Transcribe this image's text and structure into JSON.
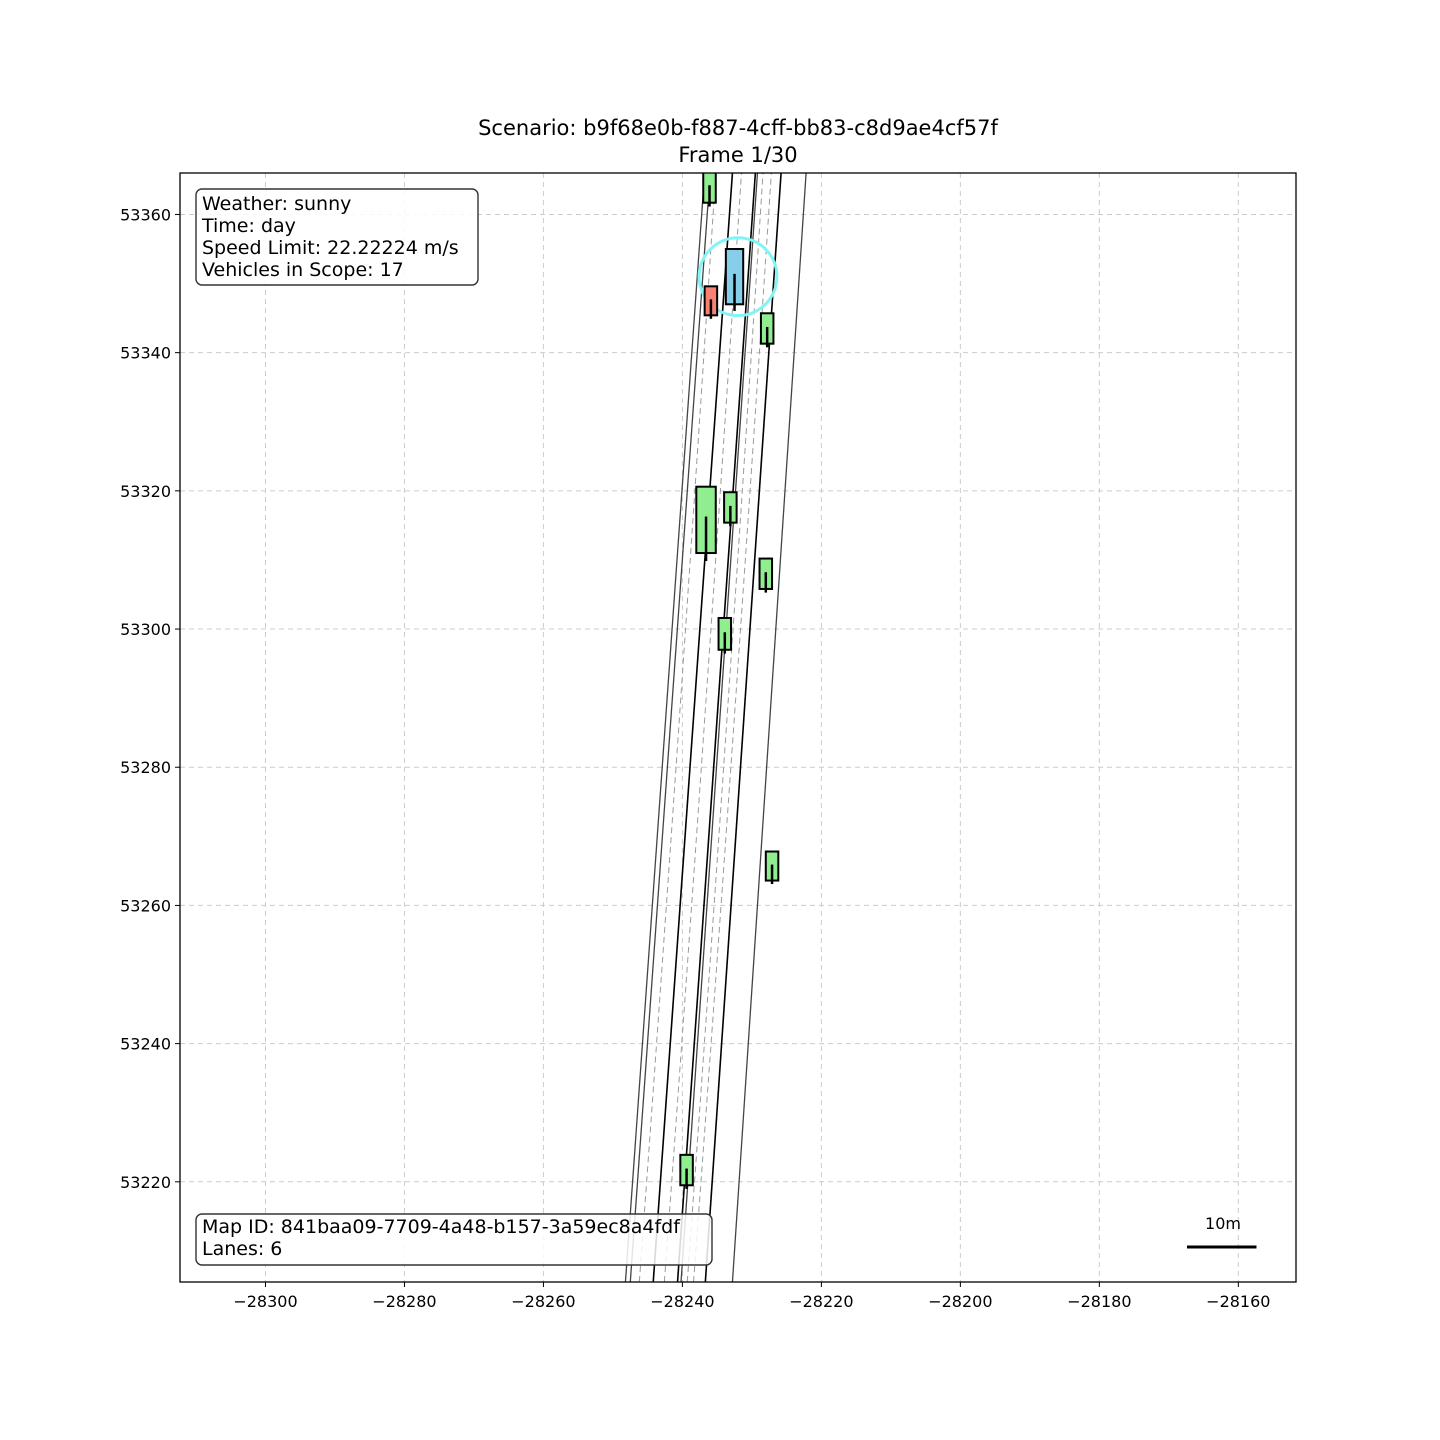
{
  "title_line1": "Scenario: b9f68e0b-f887-4cff-bb83-c8d9ae4cf57f",
  "title_line2": "Frame 1/30",
  "info_top": {
    "weather": "Weather: sunny",
    "time": "Time: day",
    "speed_limit": "Speed Limit: 22.22224 m/s",
    "vehicles": "Vehicles in Scope: 17"
  },
  "info_bottom": {
    "map_id": "Map ID: 841baa09-7709-4a48-b157-3a59ec8a4fdf",
    "lanes": "Lanes: 6"
  },
  "scale_bar": {
    "label": "10m",
    "length_m": 10
  },
  "colors": {
    "ego": "#87ceeb",
    "other": "#90ee90",
    "highlight": "#fa8072",
    "ego_ring": "#7ff5f5",
    "grid": "#cccccc"
  },
  "chart_data": {
    "type": "map",
    "xlim": [
      -28312.3,
      -28151.7
    ],
    "ylim": [
      53205.5,
      53366
    ],
    "x_ticks": [
      {
        "value": -28300,
        "label": "−28300"
      },
      {
        "value": -28280,
        "label": "−28280"
      },
      {
        "value": -28260,
        "label": "−28260"
      },
      {
        "value": -28240,
        "label": "−28240"
      },
      {
        "value": -28220,
        "label": "−28220"
      },
      {
        "value": -28200,
        "label": "−28200"
      },
      {
        "value": -28180,
        "label": "−28180"
      },
      {
        "value": -28160,
        "label": "−28160"
      }
    ],
    "y_ticks": [
      {
        "value": 53220,
        "label": "53220"
      },
      {
        "value": 53240,
        "label": "53240"
      },
      {
        "value": 53260,
        "label": "53260"
      },
      {
        "value": 53280,
        "label": "53280"
      },
      {
        "value": 53300,
        "label": "53300"
      },
      {
        "value": 53320,
        "label": "53320"
      },
      {
        "value": 53340,
        "label": "53340"
      },
      {
        "value": 53360,
        "label": "53360"
      }
    ],
    "grid": true,
    "lane_lines": [
      {
        "style": "solid-gray",
        "points": [
          [
            -28248.2,
            53205.5
          ],
          [
            -28236.8,
            53366
          ]
        ]
      },
      {
        "style": "solid-gray",
        "points": [
          [
            -28247.5,
            53205.5
          ],
          [
            -28236,
            53366
          ]
        ]
      },
      {
        "style": "solid-black",
        "points": [
          [
            -28244.2,
            53205.5
          ],
          [
            -28232.8,
            53366
          ]
        ]
      },
      {
        "style": "solid-black",
        "points": [
          [
            -28240.7,
            53205.5
          ],
          [
            -28229.5,
            53366
          ]
        ]
      },
      {
        "style": "solid-gray",
        "points": [
          [
            -28240.2,
            53205.5
          ],
          [
            -28229.2,
            53366
          ]
        ]
      },
      {
        "style": "solid-black",
        "points": [
          [
            -28236.7,
            53205.5
          ],
          [
            -28225.8,
            53366
          ]
        ]
      },
      {
        "style": "solid-gray",
        "points": [
          [
            -28232.8,
            53205.5
          ],
          [
            -28222.2,
            53366
          ]
        ]
      },
      {
        "style": "dashed",
        "points": [
          [
            -28246.2,
            53205.5
          ],
          [
            -28235.2,
            53366
          ]
        ]
      },
      {
        "style": "dashed",
        "points": [
          [
            -28242.6,
            53205.5
          ],
          [
            -28231.5,
            53366
          ]
        ]
      },
      {
        "style": "dashed",
        "points": [
          [
            -28239.3,
            53205.5
          ],
          [
            -28228.4,
            53366
          ]
        ]
      },
      {
        "style": "dashed",
        "points": [
          [
            -28238.4,
            53205.5
          ],
          [
            -28227.2,
            53366
          ]
        ]
      }
    ],
    "vehicles": [
      {
        "role": "other",
        "x": -28236.1,
        "y": 53364,
        "width": 1.8,
        "length": 4.6
      },
      {
        "role": "ego",
        "x": -28232.5,
        "y": 53351,
        "width": 2.5,
        "length": 8.0
      },
      {
        "role": "highlight",
        "x": -28235.9,
        "y": 53347.5,
        "width": 1.8,
        "length": 4.2
      },
      {
        "role": "other",
        "x": -28227.8,
        "y": 53343.5,
        "width": 1.8,
        "length": 4.4
      },
      {
        "role": "other",
        "x": -28236.6,
        "y": 53315.8,
        "width": 2.8,
        "length": 9.6
      },
      {
        "role": "other",
        "x": -28233.1,
        "y": 53317.6,
        "width": 1.8,
        "length": 4.4
      },
      {
        "role": "other",
        "x": -28228.0,
        "y": 53308,
        "width": 1.8,
        "length": 4.4
      },
      {
        "role": "other",
        "x": -28233.9,
        "y": 53299.3,
        "width": 1.8,
        "length": 4.6
      },
      {
        "role": "other",
        "x": -28227.1,
        "y": 53265.7,
        "width": 1.8,
        "length": 4.2
      },
      {
        "role": "other",
        "x": -28239.4,
        "y": 53221.7,
        "width": 1.8,
        "length": 4.4
      }
    ],
    "ego_ring": {
      "x": -28232.0,
      "y": 53351,
      "radius": 5.6
    }
  }
}
